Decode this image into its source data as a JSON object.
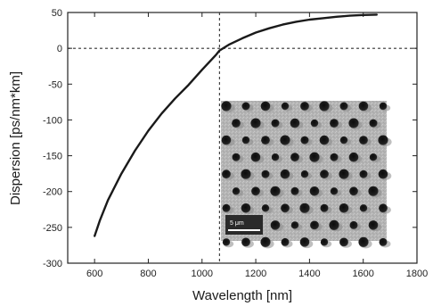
{
  "chart_data": {
    "type": "line",
    "title": "",
    "xlabel": "Wavelength [nm]",
    "ylabel": "Dispersion [ps/nm*km]",
    "xlim": [
      500,
      1800
    ],
    "ylim": [
      -300,
      50
    ],
    "xticks": [
      600,
      800,
      1000,
      1200,
      1400,
      1600,
      1800
    ],
    "yticks": [
      50,
      0,
      -50,
      -100,
      -150,
      -200,
      -250,
      -300
    ],
    "grid": false,
    "legend": "none",
    "series": [
      {
        "x": [
          600,
          620,
          650,
          700,
          750,
          800,
          850,
          900,
          950,
          1000,
          1050,
          1065,
          1100,
          1150,
          1200,
          1250,
          1300,
          1350,
          1400,
          1450,
          1500,
          1550,
          1600,
          1650
        ],
        "y": [
          -262,
          -240,
          -212,
          -175,
          -143,
          -115,
          -91,
          -70,
          -51,
          -30,
          -10,
          -3,
          5,
          14,
          22,
          28,
          33,
          37,
          40,
          42,
          44,
          45.5,
          46.5,
          47
        ],
        "color": "#1a1a1a"
      }
    ],
    "reference_lines": {
      "horizontal_y": 0,
      "vertical_x": 1065,
      "style": "dashed"
    },
    "inset": {
      "kind": "SEM micrograph of photonic crystal fiber cross-section",
      "scale_bar_label": "5 μm"
    },
    "colors": {
      "line": "#1a1a1a",
      "axis": "#222222",
      "reference": "#333333",
      "inset_background": "#b8b8b8",
      "holes": "#141414"
    }
  }
}
